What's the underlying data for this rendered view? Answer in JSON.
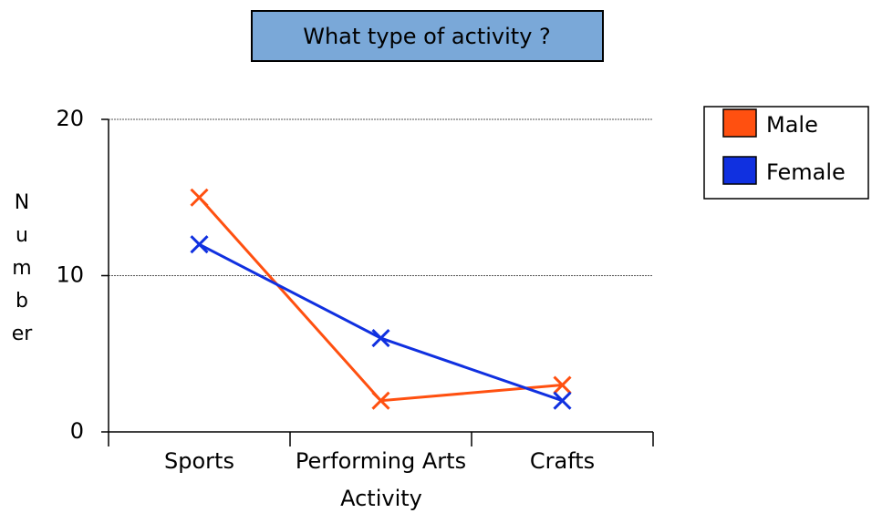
{
  "chart_data": {
    "type": "line",
    "title": "What type of activity ?",
    "x_label": "Activity",
    "y_label": "Number",
    "categories": [
      "Sports",
      "Performing Arts",
      "Crafts"
    ],
    "series": [
      {
        "name": "Male",
        "color": "#ff5010",
        "values": [
          15,
          2,
          3
        ]
      },
      {
        "name": "Female",
        "color": "#1030e0",
        "values": [
          12,
          6,
          2
        ]
      }
    ],
    "ylim": [
      0,
      20
    ],
    "yticks": [
      0,
      10,
      20
    ],
    "grid": true,
    "legend": "right"
  }
}
